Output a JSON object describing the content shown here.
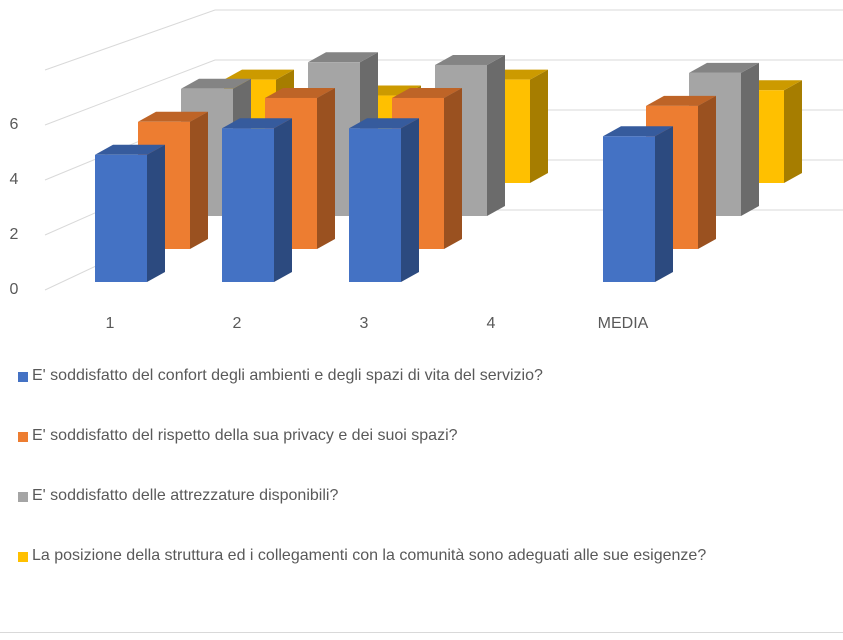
{
  "chart_data": {
    "type": "bar3d",
    "categories": [
      "1",
      "2",
      "3",
      "4",
      "MEDIA"
    ],
    "series": [
      {
        "name": "E' soddisfatto del confort degli ambienti e degli spazi di vita del servizio?",
        "color": "#4472c4",
        "values": [
          4.8,
          5.8,
          5.8,
          null,
          5.5
        ]
      },
      {
        "name": "E' soddisfatto del rispetto della sua privacy e dei suoi spazi?",
        "color": "#ed7d31",
        "values": [
          4.8,
          5.7,
          5.7,
          null,
          5.4
        ]
      },
      {
        "name": "E' soddisfatto delle attrezzature disponibili?",
        "color": "#a5a5a5",
        "values": [
          4.8,
          5.8,
          5.7,
          null,
          5.4
        ]
      },
      {
        "name": "La posizione della struttura ed i collegamenti con la comunità sono adeguati alle sue esigenze?",
        "color": "#ffc000",
        "values": [
          3.9,
          3.3,
          3.9,
          null,
          3.5
        ]
      }
    ],
    "ylim": [
      0,
      8
    ],
    "yticks": [
      0,
      2,
      4,
      6
    ],
    "grid": true,
    "legend": "bottom"
  }
}
